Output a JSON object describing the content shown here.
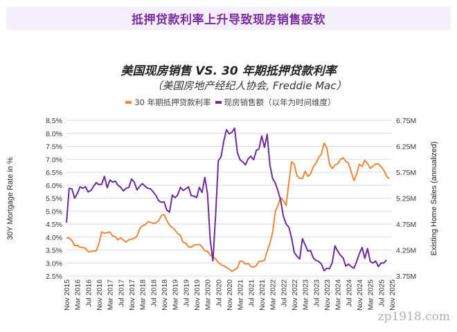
{
  "header": {
    "banner": "抵押贷款利率上升导致现房销售疲软"
  },
  "watermark": "zp1918.com",
  "colors": {
    "rate": "#e8873a",
    "sales": "#6a2a9a",
    "banner_bg": "#f4effb",
    "banner_text": "#7a2d9c"
  },
  "chart_data": {
    "type": "line",
    "title": "美国现房销售 VS. 30 年期抵押贷款利率",
    "subtitle": "（美国房地产经纪人协会, Freddie Mac）",
    "legend": [
      "30 年期抵押贷款利率",
      "现房销售额（以年为时间维度）"
    ],
    "legend_position": "top-center",
    "ylabel": "30Y Mortgage Rate in %",
    "y2label": "Existing Home Sales (annualized)",
    "ylim": [
      2.5,
      8.5
    ],
    "y2lim": [
      3.75,
      6.75
    ],
    "yticks": [
      "2.5%",
      "3.0%",
      "3.5%",
      "4.0%",
      "4.5%",
      "5.0%",
      "5.5%",
      "6.0%",
      "6.5%",
      "7.0%",
      "7.5%",
      "8.0%",
      "8.5%"
    ],
    "y2ticks": [
      "3.75M",
      "4.25M",
      "4.75M",
      "5.25M",
      "5.75M",
      "6.25M",
      "6.75M"
    ],
    "xticks": [
      "Nov 2015",
      "Mar 2016",
      "Jul 2016",
      "Nov 2016",
      "Mar 2017",
      "Jul 2017",
      "Nov 2017",
      "Mar 2018",
      "Jul 2018",
      "Nov 2018",
      "Mar 2019",
      "Jul 2019",
      "Nov 2019",
      "Mar 2020",
      "Jul 2020",
      "Nov 2020",
      "Mar 2021",
      "Jul 2021",
      "Nov 2021",
      "Mar 2022",
      "Jul 2022",
      "Nov 2022",
      "Mar 2023",
      "Jul 2023",
      "Nov 2023",
      "Mar 2024",
      "Jul 2024",
      "Nov 2024",
      "Mar 2025",
      "Jul 2025",
      "Nov 2025"
    ],
    "grid": true,
    "x_start": "Nov 2015",
    "x_step": "monthly",
    "series": [
      {
        "name": "30 年期抵押贷款利率",
        "axis": "left",
        "values": [
          3.98,
          3.96,
          3.87,
          3.66,
          3.69,
          3.61,
          3.6,
          3.57,
          3.44,
          3.44,
          3.46,
          3.47,
          3.77,
          4.2,
          4.15,
          4.17,
          4.2,
          4.05,
          4.01,
          3.9,
          3.97,
          3.88,
          3.81,
          3.9,
          3.92,
          3.95,
          4.03,
          4.33,
          4.44,
          4.47,
          4.59,
          4.57,
          4.53,
          4.55,
          4.63,
          4.83,
          4.87,
          4.64,
          4.46,
          4.37,
          4.27,
          4.14,
          4.07,
          3.8,
          3.77,
          3.62,
          3.61,
          3.69,
          3.7,
          3.72,
          3.62,
          3.47,
          3.45,
          3.31,
          3.23,
          3.16,
          3.02,
          2.94,
          2.89,
          2.83,
          2.77,
          2.68,
          2.74,
          2.81,
          3.08,
          3.06,
          2.96,
          2.98,
          2.87,
          2.84,
          2.9,
          3.07,
          3.07,
          3.1,
          3.45,
          3.76,
          4.17,
          4.98,
          5.23,
          5.52,
          5.41,
          5.22,
          6.11,
          6.9,
          6.81,
          6.36,
          6.27,
          6.26,
          6.54,
          6.34,
          6.43,
          6.71,
          6.84,
          7.07,
          7.2,
          7.62,
          7.44,
          6.82,
          6.64,
          6.78,
          6.82,
          6.99,
          7.06,
          6.92,
          6.85,
          6.5,
          6.18,
          6.43,
          6.81,
          6.72,
          6.96,
          6.84,
          6.65,
          6.73,
          6.82,
          6.82,
          6.72,
          6.58,
          6.35,
          6.25
        ]
      },
      {
        "name": "现房销售额（以年为时间维度）",
        "axis": "right",
        "unit": "M",
        "values": [
          4.78,
          5.44,
          5.43,
          5.25,
          5.34,
          5.47,
          5.44,
          5.47,
          5.37,
          5.4,
          5.48,
          5.55,
          5.51,
          5.52,
          5.67,
          5.45,
          5.6,
          5.56,
          5.58,
          5.5,
          5.46,
          5.39,
          5.44,
          5.46,
          5.62,
          5.56,
          5.41,
          5.48,
          5.53,
          5.48,
          5.44,
          5.43,
          5.37,
          5.3,
          5.2,
          5.17,
          5.18,
          5.02,
          4.98,
          5.31,
          5.26,
          5.31,
          5.46,
          5.4,
          5.43,
          5.47,
          5.3,
          5.29,
          5.26,
          5.46,
          5.36,
          5.65,
          5.33,
          4.45,
          4.04,
          4.92,
          5.97,
          6.05,
          6.35,
          6.57,
          6.49,
          6.52,
          6.6,
          6.13,
          5.99,
          5.95,
          5.89,
          6.01,
          6.06,
          5.99,
          6.17,
          6.2,
          6.45,
          6.23,
          6.48,
          5.89,
          5.63,
          5.54,
          5.39,
          5.2,
          4.9,
          4.75,
          4.69,
          4.48,
          4.2,
          4.13,
          4.08,
          4.47,
          4.35,
          4.23,
          4.24,
          4.1,
          4.05,
          4.03,
          3.98,
          3.85,
          3.9,
          3.89,
          4.01,
          4.33,
          4.23,
          4.15,
          4.1,
          3.94,
          3.98,
          3.93,
          3.9,
          4.03,
          4.18,
          4.3,
          4.09,
          4.28,
          4.03,
          4.0,
          4.04,
          3.93,
          4.0,
          4.0,
          4.06
        ]
      }
    ]
  }
}
